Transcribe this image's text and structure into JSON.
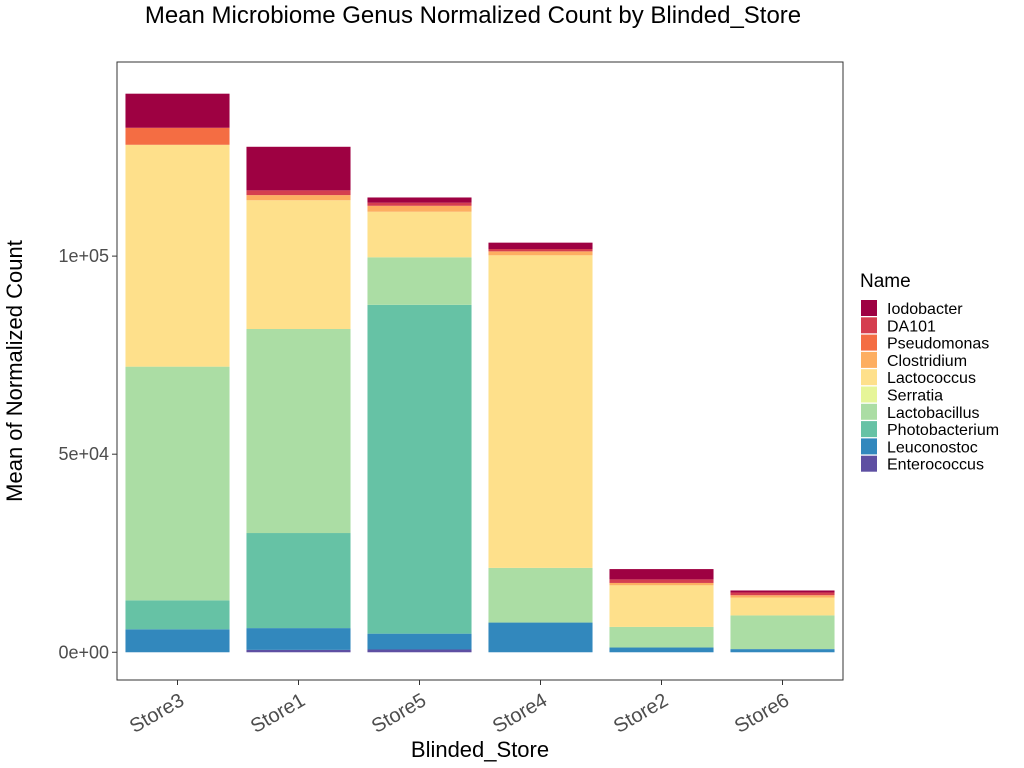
{
  "chart_data": {
    "type": "bar",
    "stacked": true,
    "title": "Mean Microbiome Genus Normalized Count by Blinded_Store",
    "xlabel": "Blinded_Store",
    "ylabel": "Mean of Normalized Count",
    "categories": [
      "Store3",
      "Store1",
      "Store5",
      "Store4",
      "Store2",
      "Store6"
    ],
    "ylim": [
      -7000,
      149000
    ],
    "yticks": [
      0,
      50000,
      100000
    ],
    "ytick_labels": [
      "0e+00",
      "5e+04",
      "1e+05"
    ],
    "legend_title": "Name",
    "legend_position": "right",
    "grid": false,
    "series": [
      {
        "name": "Enterococcus",
        "color": "#5E4FA2",
        "values": [
          0,
          600,
          700,
          0,
          0,
          0
        ]
      },
      {
        "name": "Leuconostoc",
        "color": "#3288BD",
        "values": [
          5800,
          5500,
          4000,
          7500,
          1200,
          800
        ]
      },
      {
        "name": "Photobacterium",
        "color": "#66C2A5",
        "values": [
          7300,
          24000,
          83000,
          0,
          0,
          0
        ]
      },
      {
        "name": "Lactobacillus",
        "color": "#ABDDA4",
        "values": [
          59000,
          51500,
          12000,
          13800,
          5200,
          8500
        ]
      },
      {
        "name": "Serratia",
        "color": "#E6F598",
        "values": [
          0,
          0,
          0,
          0,
          0,
          0
        ]
      },
      {
        "name": "Lactococcus",
        "color": "#FEE08B",
        "values": [
          56000,
          32500,
          11500,
          78900,
          10500,
          4500
        ]
      },
      {
        "name": "Clostridium",
        "color": "#FDAE61",
        "values": [
          0,
          1300,
          1500,
          1000,
          600,
          600
        ]
      },
      {
        "name": "Pseudomonas",
        "color": "#F46D43",
        "values": [
          4300,
          0,
          0,
          0,
          0,
          0
        ]
      },
      {
        "name": "DA101",
        "color": "#D53E4F",
        "values": [
          0,
          1200,
          800,
          600,
          900,
          700
        ]
      },
      {
        "name": "Iodobacter",
        "color": "#9E0142",
        "values": [
          8600,
          11000,
          1300,
          1600,
          2600,
          500
        ]
      }
    ]
  }
}
